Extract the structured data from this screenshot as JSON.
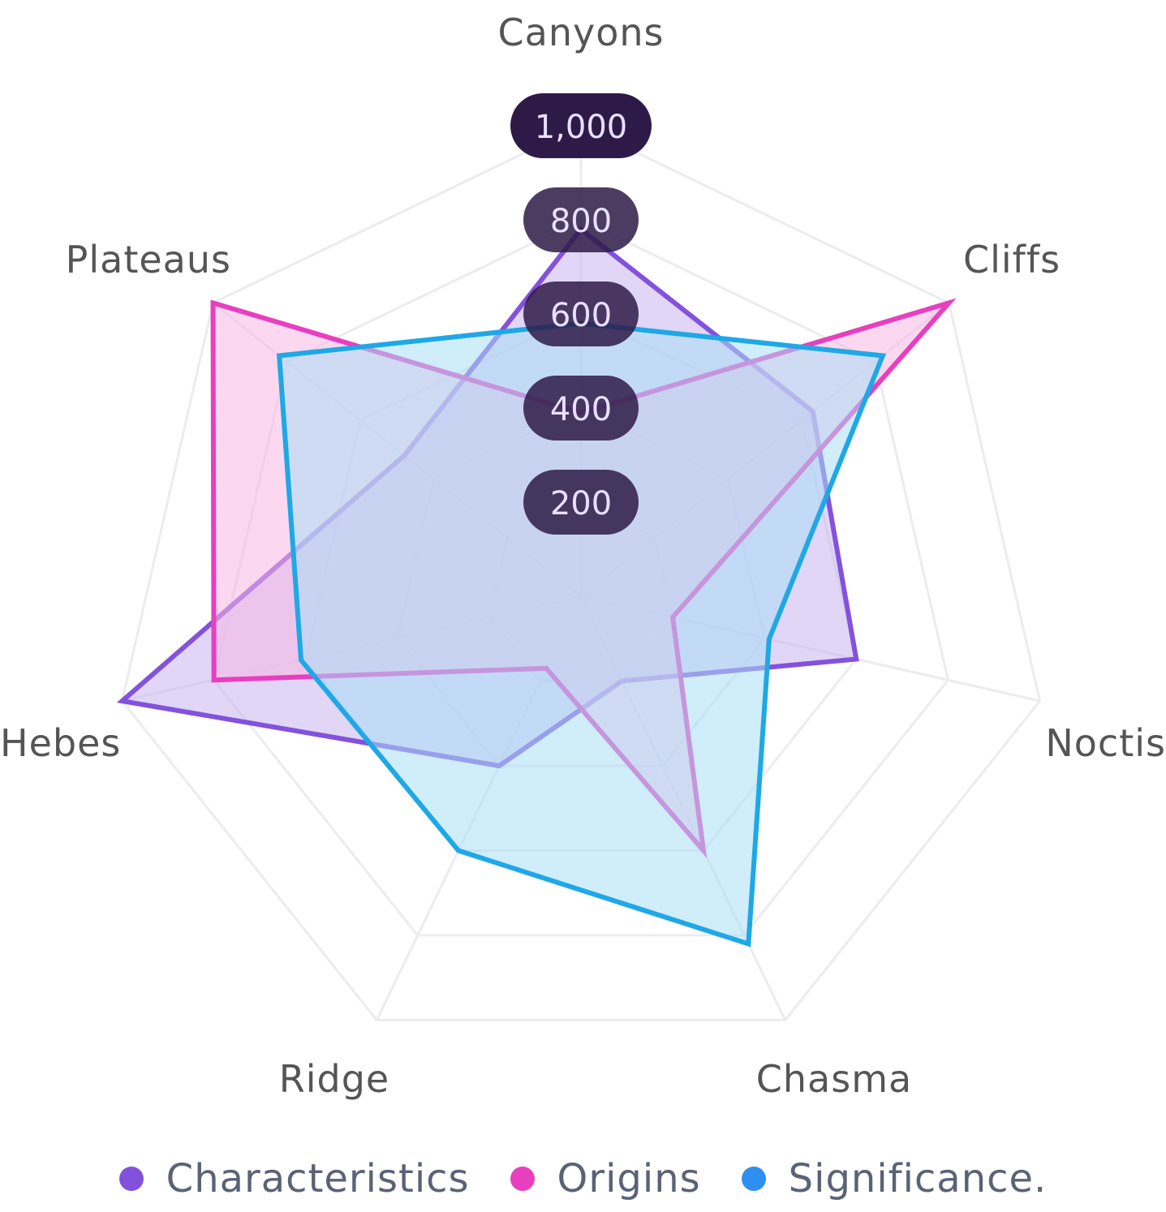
{
  "chart_data": {
    "type": "radar",
    "title": "",
    "axes": [
      "Canyons",
      "Cliffs",
      "Noctis",
      "Chasma",
      "Ridge",
      "Hebes",
      "Plateaus"
    ],
    "radial_ticks": [
      "200",
      "400",
      "600",
      "800",
      "1,000"
    ],
    "radial_tick_values": [
      200,
      400,
      600,
      800,
      1000
    ],
    "rmax": 1000,
    "grid": true,
    "legend_position": "bottom",
    "series": [
      {
        "name": "Characteristics",
        "color": "#8352dd",
        "fill": "#c9b4ef",
        "values": [
          780,
          630,
          600,
          200,
          400,
          1000,
          480
        ]
      },
      {
        "name": "Origins",
        "color": "#e83fbf",
        "fill": "#f7b8e4",
        "values": [
          390,
          1000,
          200,
          600,
          170,
          800,
          1000
        ]
      },
      {
        "name": "Significance.",
        "color": "#1ea8e6",
        "fill": "#a9def5",
        "values": [
          580,
          820,
          410,
          820,
          600,
          610,
          820
        ]
      }
    ]
  },
  "legend": {
    "items": [
      {
        "label": "Characteristics",
        "color": "#8352dd"
      },
      {
        "label": "Origins",
        "color": "#e83fbf"
      },
      {
        "label": "Significance.",
        "color": "#2f8ff0"
      }
    ]
  }
}
